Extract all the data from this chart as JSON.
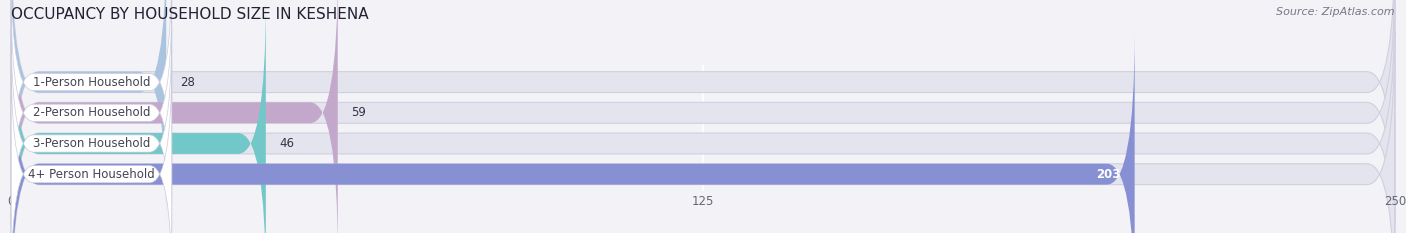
{
  "title": "OCCUPANCY BY HOUSEHOLD SIZE IN KESHENA",
  "source": "Source: ZipAtlas.com",
  "categories": [
    "1-Person Household",
    "2-Person Household",
    "3-Person Household",
    "4+ Person Household"
  ],
  "values": [
    28,
    59,
    46,
    203
  ],
  "bar_colors": [
    "#aac4e0",
    "#c4a8cc",
    "#72c8c8",
    "#8890d4"
  ],
  "label_colors": [
    "#333333",
    "#333333",
    "#333333",
    "#ffffff"
  ],
  "xlim": [
    0,
    250
  ],
  "xticks": [
    0,
    125,
    250
  ],
  "bar_height": 0.68,
  "background_color": "#f2f2f7",
  "bar_background_color": "#e4e4ee",
  "title_fontsize": 11,
  "label_fontsize": 8.5,
  "value_fontsize": 8.5,
  "source_fontsize": 8
}
